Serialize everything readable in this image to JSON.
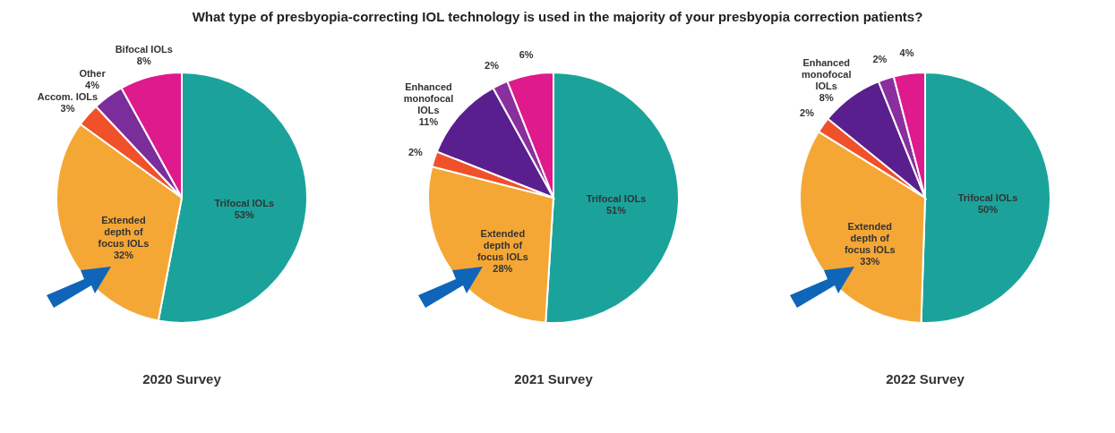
{
  "chart_data": [
    {
      "type": "pie",
      "title": "2020 Survey",
      "annotations": [
        "What type of presbyopia-correcting IOL technology is used in the majority of your presbyopia correction patients?"
      ],
      "categories": [
        "Trifocal IOLs",
        "Extended depth of focus IOLs",
        "Accom. IOLs",
        "Other",
        "Bifocal IOLs"
      ],
      "values": [
        53,
        32,
        3,
        4,
        8
      ],
      "value_labels": [
        "53%",
        "32%",
        "3%",
        "4%",
        "8%"
      ],
      "colors": [
        "#1ba39b",
        "#f5a735",
        "#f0512a",
        "#7b2d9c",
        "#de1a8c"
      ]
    },
    {
      "type": "pie",
      "title": "2021 Survey",
      "categories": [
        "Trifocal IOLs",
        "Extended depth of focus IOLs",
        null,
        "Enhanced monofocal IOLs",
        null,
        null
      ],
      "values": [
        51,
        28,
        2,
        11,
        2,
        6
      ],
      "value_labels": [
        "51%",
        "28%",
        "2%",
        "11%",
        "2%",
        "6%"
      ],
      "colors": [
        "#1ba39b",
        "#f5a735",
        "#f0512a",
        "#5a1f8e",
        "#8a2f9e",
        "#de1a8c"
      ]
    },
    {
      "type": "pie",
      "title": "2022 Survey",
      "categories": [
        "Trifocal IOLs",
        "Extended depth of focus IOLs",
        null,
        "Enhanced monofocal IOLs",
        null,
        null
      ],
      "values": [
        50,
        33,
        2,
        8,
        2,
        4
      ],
      "value_labels": [
        "50%",
        "33%",
        "2%",
        "8%",
        "2%",
        "4%"
      ],
      "colors": [
        "#1ba39b",
        "#f5a735",
        "#f0512a",
        "#5a1f8e",
        "#8a2f9e",
        "#de1a8c"
      ]
    }
  ]
}
